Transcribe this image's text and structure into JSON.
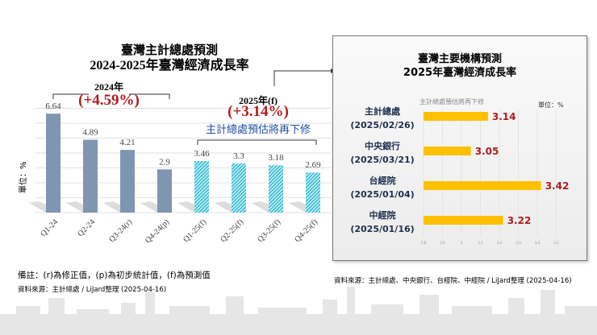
{
  "left": {
    "title1": "臺灣主計總處預測",
    "title2": "2024-2025年臺灣經濟成長率",
    "label2024": "2024年",
    "growth2024": "(+4.59%)",
    "label2025": "2025年(f)",
    "growth2025": "(+3.14%)",
    "revision_note": "主計總處預估將再下修",
    "note": "備註：(r)為修正值，(p)為初步統計值，(f)為預測值",
    "source": "資料來源：主計總處 / LiJard整理 (2025-04-16)"
  },
  "right": {
    "title1": "臺灣主要機構預測",
    "title2": "2025年臺灣經濟成長率",
    "subtitle": "主計總處預估將再下修",
    "source": "資料來源：主計總處、中央銀行、台經院、中經院 / LiJard整理 (2025-04-16)"
  },
  "colors": {
    "actual": "#7f96b2",
    "forecast": "#3fc0d6",
    "bar_right": "#ffc000",
    "red": "#b01c1c",
    "blue": "#1f4fa8"
  },
  "chart_data": [
    {
      "type": "bar",
      "ylabel": "單位：%",
      "categories": [
        "Q1-24",
        "Q2-24",
        "Q3-24(r)",
        "Q4-24(p)",
        "Q1-25(f)",
        "Q2-25(f)",
        "Q3-25(f)",
        "Q4-25(f)"
      ],
      "values": [
        6.64,
        4.89,
        4.21,
        2.9,
        3.46,
        3.3,
        3.18,
        2.69
      ],
      "labels": [
        "6.64",
        "4.89",
        "4.21",
        "2.9",
        "3.46",
        "3.3",
        "3.18",
        "2.69"
      ],
      "forecast": [
        false,
        false,
        false,
        false,
        true,
        true,
        true,
        true
      ],
      "ylim": [
        0,
        7
      ],
      "grid": true
    },
    {
      "type": "bar",
      "orientation": "horizontal",
      "unit": "單位：%",
      "categories": [
        [
          "主計總處",
          "(2025/02/26)"
        ],
        [
          "中央銀行",
          "(2025/03/21)"
        ],
        [
          "台經院",
          "(2025/01/04)"
        ],
        [
          "中經院",
          "(2025/01/16)"
        ]
      ],
      "values": [
        3.14,
        3.05,
        3.42,
        3.22
      ],
      "labels": [
        "3.14",
        "3.05",
        "3.42",
        "3.22"
      ],
      "xlim": [
        2.8,
        3.5
      ],
      "xticks": [
        "2.8",
        "2.9",
        "3",
        "3.1",
        "3.2",
        "3.3",
        "3.4",
        "3.5"
      ]
    }
  ]
}
